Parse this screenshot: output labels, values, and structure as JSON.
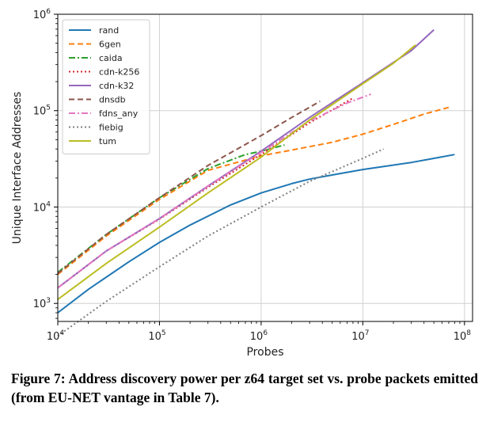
{
  "chart_data": {
    "type": "line",
    "xlabel": "Probes",
    "ylabel": "Unique Interface Addresses",
    "x_scale": "log",
    "y_scale": "log",
    "xlim": [
      10000,
      120000000
    ],
    "ylim": [
      650,
      1000000
    ],
    "x_ticks": [
      {
        "value": 10000,
        "base": "10",
        "exp": "4"
      },
      {
        "value": 100000,
        "base": "10",
        "exp": "5"
      },
      {
        "value": 1000000,
        "base": "10",
        "exp": "6"
      },
      {
        "value": 10000000,
        "base": "10",
        "exp": "7"
      },
      {
        "value": 100000000,
        "base": "10",
        "exp": "8"
      }
    ],
    "y_ticks": [
      {
        "value": 1000,
        "base": "10",
        "exp": "3"
      },
      {
        "value": 10000,
        "base": "10",
        "exp": "4"
      },
      {
        "value": 100000,
        "base": "10",
        "exp": "5"
      },
      {
        "value": 1000000,
        "base": "10",
        "exp": "6"
      }
    ],
    "grid": true,
    "legend_position": "top-left",
    "series": [
      {
        "name": "rand",
        "color": "#1f77b4",
        "dash": "solid",
        "points": [
          [
            10000,
            800
          ],
          [
            20000,
            1400
          ],
          [
            50000,
            2700
          ],
          [
            100000,
            4300
          ],
          [
            200000,
            6500
          ],
          [
            500000,
            10500
          ],
          [
            1000000,
            14000
          ],
          [
            2000000,
            17500
          ],
          [
            3000000,
            19500
          ],
          [
            5000000,
            21500
          ],
          [
            10000000,
            24500
          ],
          [
            30000000,
            29000
          ],
          [
            50000000,
            32000
          ],
          [
            80000000,
            35000
          ]
        ]
      },
      {
        "name": "6gen",
        "color": "#ff7f0e",
        "dash": "dashed",
        "points": [
          [
            10000,
            2000
          ],
          [
            30000,
            5000
          ],
          [
            100000,
            12000
          ],
          [
            300000,
            24000
          ],
          [
            1000000,
            34000
          ],
          [
            2000000,
            39000
          ],
          [
            5000000,
            47000
          ],
          [
            10000000,
            57000
          ],
          [
            20000000,
            72000
          ],
          [
            40000000,
            92000
          ],
          [
            70000000,
            108000
          ]
        ]
      },
      {
        "name": "caida",
        "color": "#2ca02c",
        "dash": "dashdot",
        "points": [
          [
            10000,
            2100
          ],
          [
            30000,
            5200
          ],
          [
            100000,
            12500
          ],
          [
            300000,
            25000
          ],
          [
            700000,
            35000
          ],
          [
            1000000,
            38000
          ],
          [
            1700000,
            44000
          ]
        ]
      },
      {
        "name": "cdn-k256",
        "color": "#d62728",
        "dash": "dotted",
        "points": [
          [
            10000,
            1450
          ],
          [
            30000,
            3500
          ],
          [
            100000,
            7500
          ],
          [
            300000,
            16000
          ],
          [
            1000000,
            35000
          ],
          [
            3000000,
            75000
          ],
          [
            8000000,
            135000
          ]
        ]
      },
      {
        "name": "cdn-k32",
        "color": "#9467bd",
        "dash": "solid",
        "points": [
          [
            10000,
            1450
          ],
          [
            30000,
            3500
          ],
          [
            100000,
            7600
          ],
          [
            300000,
            16500
          ],
          [
            1000000,
            38000
          ],
          [
            3000000,
            85000
          ],
          [
            10000000,
            195000
          ],
          [
            30000000,
            420000
          ],
          [
            50000000,
            690000
          ]
        ]
      },
      {
        "name": "dnsdb",
        "color": "#8c564b",
        "dash": "dashed",
        "points": [
          [
            10000,
            2050
          ],
          [
            30000,
            5200
          ],
          [
            100000,
            12500
          ],
          [
            300000,
            27000
          ],
          [
            1000000,
            55000
          ],
          [
            2000000,
            85000
          ],
          [
            3800000,
            125000
          ]
        ]
      },
      {
        "name": "fdns_any",
        "color": "#e377c2",
        "dash": "dashdot",
        "points": [
          [
            10000,
            1450
          ],
          [
            30000,
            3500
          ],
          [
            100000,
            7600
          ],
          [
            300000,
            16500
          ],
          [
            1000000,
            37000
          ],
          [
            3000000,
            78000
          ],
          [
            7000000,
            120000
          ],
          [
            12000000,
            148000
          ]
        ]
      },
      {
        "name": "fiebig",
        "color": "#7f7f7f",
        "dash": "dotted",
        "points": [
          [
            10000,
            460
          ],
          [
            30000,
            1050
          ],
          [
            100000,
            2400
          ],
          [
            300000,
            5000
          ],
          [
            1000000,
            10000
          ],
          [
            3000000,
            18500
          ],
          [
            10000000,
            32000
          ],
          [
            16000000,
            40000
          ]
        ]
      },
      {
        "name": "tum",
        "color": "#bcbd22",
        "dash": "solid",
        "points": [
          [
            10000,
            1100
          ],
          [
            30000,
            2600
          ],
          [
            100000,
            6200
          ],
          [
            300000,
            14000
          ],
          [
            1000000,
            33000
          ],
          [
            3000000,
            80000
          ],
          [
            10000000,
            190000
          ],
          [
            20000000,
            310000
          ],
          [
            33000000,
            480000
          ]
        ]
      }
    ]
  },
  "caption": "Figure 7: Address discovery power per z64 target set vs. probe packets emitted (from EU-NET vantage in Table 7)."
}
